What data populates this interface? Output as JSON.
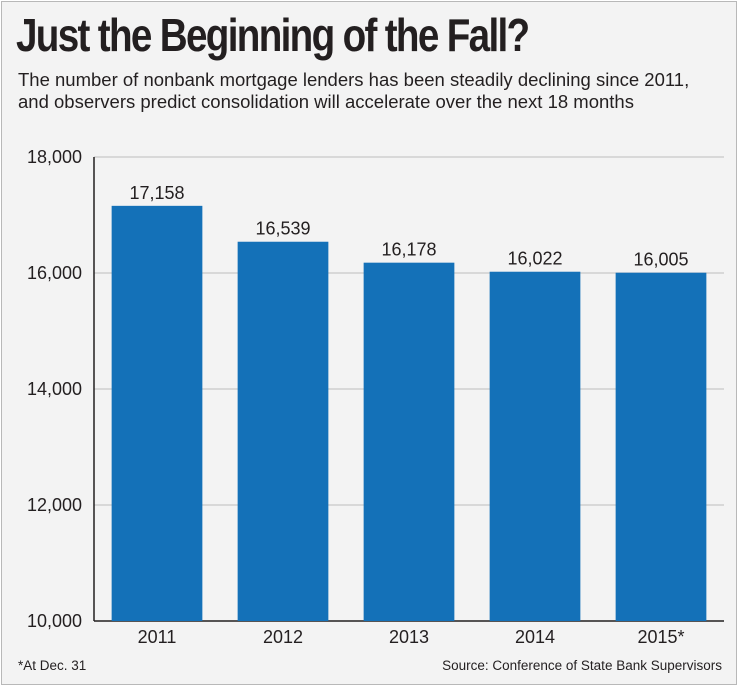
{
  "chart_data": {
    "type": "bar",
    "title": "Just the Beginning of the Fall?",
    "subtitle": "The number of nonbank mortgage lenders has been steadily declining since 2011, and observers predict consolidation will accelerate over the next 18 months",
    "categories": [
      "2011",
      "2012",
      "2013",
      "2014",
      "2015*"
    ],
    "values": [
      17158,
      16539,
      16178,
      16022,
      16005
    ],
    "value_labels": [
      "17,158",
      "16,539",
      "16,178",
      "16,022",
      "16,005"
    ],
    "ylim": [
      10000,
      18000
    ],
    "yticks": [
      10000,
      12000,
      14000,
      16000,
      18000
    ],
    "ytick_labels": [
      "10,000",
      "12,000",
      "14,000",
      "16,000",
      "18,000"
    ],
    "xlabel": "",
    "ylabel": "",
    "grid": true,
    "bar_color": "#1471b8",
    "footnote": "*At Dec. 31",
    "source": "Source: Conference of State Bank Supervisors"
  }
}
